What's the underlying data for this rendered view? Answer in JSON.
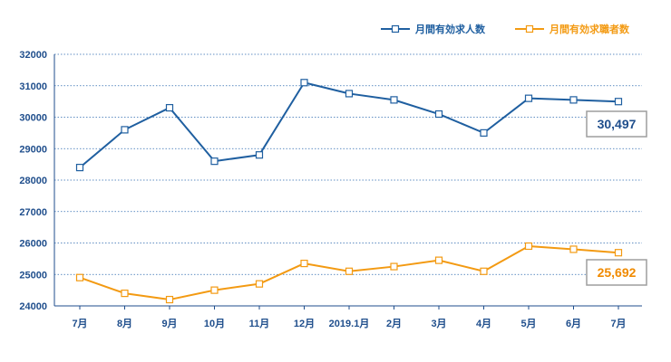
{
  "chart_data": {
    "type": "line",
    "categories": [
      "7月",
      "8月",
      "9月",
      "10月",
      "11月",
      "12月",
      "2019.1月",
      "2月",
      "3月",
      "4月",
      "5月",
      "6月",
      "7月"
    ],
    "series": [
      {
        "name": "月間有効求人数",
        "color": "#1f5fa0",
        "values": [
          28400,
          29600,
          30300,
          28600,
          28800,
          31100,
          30750,
          30550,
          30100,
          29500,
          30600,
          30550,
          30497
        ]
      },
      {
        "name": "月間有効求職者数",
        "color": "#f39a12",
        "values": [
          24900,
          24400,
          24200,
          24500,
          24700,
          25350,
          25100,
          25250,
          25450,
          25100,
          25900,
          25800,
          25692
        ]
      }
    ],
    "ylim": [
      24000,
      32000
    ],
    "yticks": [
      24000,
      25000,
      26000,
      27000,
      28000,
      29000,
      30000,
      31000,
      32000
    ],
    "grid": true,
    "legend_position": "top-right",
    "annotations": [
      {
        "series": 0,
        "text": "30,497"
      },
      {
        "series": 1,
        "text": "25,692"
      }
    ]
  }
}
